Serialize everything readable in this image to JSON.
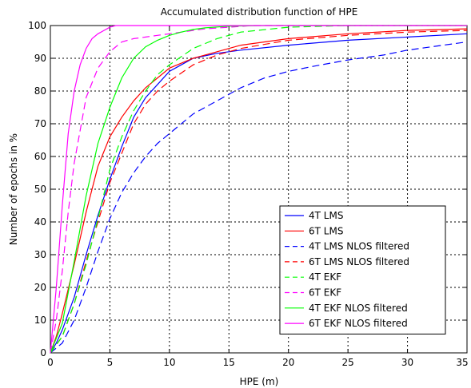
{
  "chart_data": {
    "type": "line",
    "title": "Accumulated distribution function of HPE",
    "xlabel": "HPE (m)",
    "ylabel": "Number of epochs in %",
    "xlim": [
      0,
      35
    ],
    "ylim": [
      0,
      100
    ],
    "xticks": [
      0,
      5,
      10,
      15,
      20,
      25,
      30,
      35
    ],
    "yticks": [
      0,
      10,
      20,
      30,
      40,
      50,
      60,
      70,
      80,
      90,
      100
    ],
    "grid": true,
    "legend_position": "bottom-right",
    "series": [
      {
        "name": "4T LMS",
        "color": "#0000ff",
        "dash": "solid",
        "x": [
          0,
          0.5,
          1,
          2,
          3,
          4,
          5,
          6,
          7,
          8,
          9,
          10,
          11,
          12,
          14,
          16,
          20,
          25,
          30,
          35
        ],
        "y": [
          0,
          3,
          7,
          17,
          30,
          42,
          53,
          63,
          72,
          78,
          82,
          86,
          88,
          90,
          91.5,
          92.5,
          94,
          95.5,
          96.5,
          97.5
        ]
      },
      {
        "name": "6T LMS",
        "color": "#ff0000",
        "dash": "solid",
        "x": [
          0,
          0.5,
          1,
          2,
          3,
          4,
          5,
          6,
          7,
          8,
          9,
          10,
          12,
          14,
          16,
          20,
          25,
          30,
          35
        ],
        "y": [
          0,
          5,
          12,
          27,
          43,
          57,
          66,
          72,
          77,
          81,
          84,
          87,
          90,
          92,
          94,
          96,
          97.5,
          98.5,
          99
        ]
      },
      {
        "name": "4T LMS NLOS filtered",
        "color": "#0000ff",
        "dash": "dashed",
        "x": [
          0,
          1,
          2,
          3,
          4,
          5,
          6,
          7,
          8,
          9,
          10,
          12,
          14,
          16,
          18,
          20,
          22,
          25,
          28,
          30,
          33,
          35
        ],
        "y": [
          0,
          3,
          10,
          20,
          31,
          41,
          49,
          55,
          60,
          64,
          67,
          73,
          77,
          81,
          84,
          86,
          87.5,
          89.5,
          91,
          92.5,
          94,
          95
        ]
      },
      {
        "name": "6T LMS NLOS filtered",
        "color": "#ff0000",
        "dash": "dashed",
        "x": [
          0,
          1,
          2,
          3,
          4,
          5,
          6,
          7,
          8,
          9,
          10,
          12,
          14,
          16,
          20,
          25,
          30,
          35
        ],
        "y": [
          0,
          5,
          15,
          28,
          40,
          52,
          61,
          70,
          76,
          80,
          83,
          88,
          91,
          93,
          95.5,
          97,
          98,
          98.5
        ]
      },
      {
        "name": "4T EKF",
        "color": "#00ff00",
        "dash": "dashed",
        "x": [
          0,
          1,
          2,
          3,
          4,
          5,
          6,
          7,
          8,
          9,
          10,
          12,
          14,
          16,
          20,
          25,
          30,
          35
        ],
        "y": [
          0,
          5,
          15,
          27,
          41,
          56,
          66,
          74,
          80,
          85,
          88,
          93,
          96,
          98,
          99.5,
          100,
          100,
          100
        ]
      },
      {
        "name": "6T EKF",
        "color": "#ff00ff",
        "dash": "dashed",
        "x": [
          0,
          0.5,
          1,
          1.5,
          2,
          3,
          4,
          5,
          6,
          7,
          8,
          9,
          10,
          11,
          12,
          13,
          15,
          17,
          20,
          35
        ],
        "y": [
          0,
          10,
          25,
          43,
          58,
          78,
          87,
          92,
          95,
          96,
          96.5,
          97,
          97.5,
          98,
          98.5,
          99,
          99.5,
          100,
          100,
          100
        ]
      },
      {
        "name": "4T EKF NLOS filtered",
        "color": "#00ff00",
        "dash": "solid",
        "x": [
          0,
          1,
          2,
          3,
          4,
          5,
          6,
          7,
          8,
          9,
          10,
          11,
          12,
          13,
          15,
          18,
          20,
          35
        ],
        "y": [
          0,
          9,
          28,
          48,
          64,
          75,
          84,
          90,
          93.5,
          95.5,
          97,
          98,
          98.8,
          99.3,
          99.8,
          100,
          100,
          100
        ]
      },
      {
        "name": "6T EKF NLOS filtered",
        "color": "#ff00ff",
        "dash": "solid",
        "x": [
          0,
          0.5,
          1,
          1.5,
          2,
          2.5,
          3,
          3.5,
          4,
          5,
          5.5,
          6,
          35
        ],
        "y": [
          0,
          20,
          45,
          67,
          80,
          88,
          93,
          96,
          97.5,
          99.5,
          100,
          100,
          100
        ]
      }
    ]
  }
}
